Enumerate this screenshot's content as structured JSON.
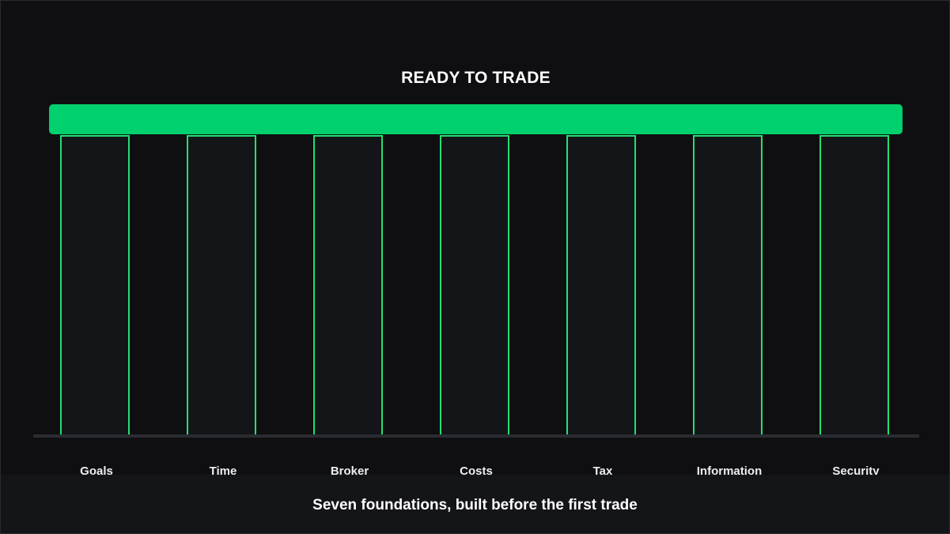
{
  "title": "READY TO TRADE",
  "pillars": [
    {
      "label": "Goals"
    },
    {
      "label": "Time"
    },
    {
      "label": "Broker"
    },
    {
      "label": "Costs"
    },
    {
      "label": "Tax"
    },
    {
      "label": "Information"
    },
    {
      "label": "Security"
    }
  ],
  "caption": "Seven foundations, built before the first trade",
  "colors": {
    "background": "#0f0f12",
    "accent": "#00d06d",
    "pillar_border": "#1fe072",
    "pillar_fill": "#141519",
    "text": "#ffffff"
  }
}
